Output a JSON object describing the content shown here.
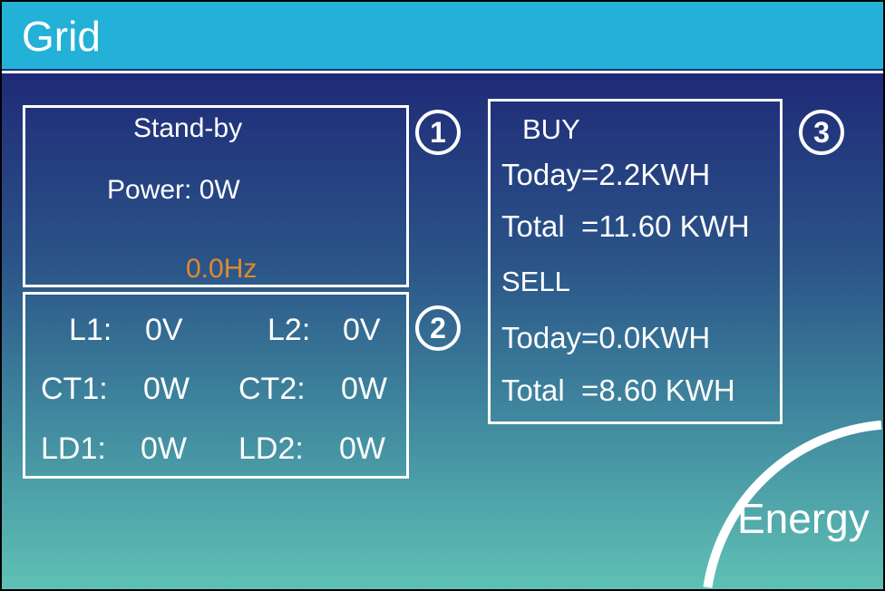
{
  "header": {
    "title": "Grid"
  },
  "status_panel": {
    "marker": "1",
    "state": "Stand-by",
    "power": "Power: 0W",
    "frequency": "0.0Hz",
    "frequency_color": "#e08a2c"
  },
  "lines_panel": {
    "marker": "2",
    "rows": [
      {
        "l_label": "L1:",
        "l_value": "0V",
        "r_label": "L2:",
        "r_value": "0V"
      },
      {
        "l_label": "CT1:",
        "l_value": "0W",
        "r_label": "CT2:",
        "r_value": "0W"
      },
      {
        "l_label": "LD1:",
        "l_value": "0W",
        "r_label": "LD2:",
        "r_value": "0W"
      }
    ]
  },
  "energy_panel": {
    "marker": "3",
    "buy_label": "BUY",
    "buy_today": "Today=2.2KWH",
    "buy_total": "Total  =11.60 KWH",
    "sell_label": "SELL",
    "sell_today": "Today=0.0KWH",
    "sell_total": "Total  =8.60 KWH"
  },
  "energy_button": {
    "label": "Energy"
  },
  "colors": {
    "header": "#24b1d8",
    "background_top": "#1f2877",
    "background_bottom": "#5fc1b5"
  }
}
